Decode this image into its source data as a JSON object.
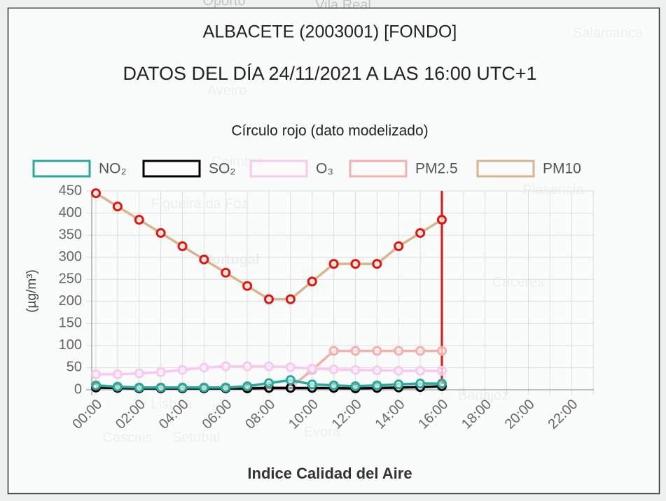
{
  "chart_data": {
    "type": "line",
    "title": "ALBACETE (2003001) [FONDO]",
    "subtitle": "DATOS DEL DÍA 24/11/2021 A LAS 16:00 UTC+1",
    "annotation": "Círculo rojo (dato modelizado)",
    "y_label": "(µg/m³)",
    "x_label": "Indice Calidad del Aire",
    "map_labels": [
      "Oporto",
      "Vila Real",
      "Salamanca",
      "Aveiro",
      "Coimbra",
      "Figueira da Foz",
      "Plasencia",
      "Portugal",
      "Cáceres",
      "Lisboa",
      "Cascais",
      "Setubal",
      "Evora",
      "Badajoz"
    ],
    "categories": [
      "00:00",
      null,
      "02:00",
      null,
      "04:00",
      null,
      "06:00",
      null,
      "08:00",
      null,
      "10:00",
      null,
      "12:00",
      null,
      "14:00",
      null,
      "16:00",
      null,
      "18:00",
      null,
      "20:00",
      null,
      "22:00",
      null
    ],
    "ylim": [
      0,
      450
    ],
    "yticks": [
      0,
      50,
      100,
      150,
      200,
      250,
      300,
      350,
      400,
      450
    ],
    "grid": true,
    "series": [
      {
        "name": "PM10",
        "color": "#d8b48e",
        "point_color": "#e3140f",
        "values": [
          445,
          415,
          385,
          355,
          325,
          295,
          265,
          235,
          205,
          205,
          245,
          285,
          285,
          285,
          325,
          355,
          385,
          null,
          null,
          null,
          null,
          null,
          null,
          null
        ]
      },
      {
        "name": "PM2.5",
        "color": "#f4b0ad",
        "point_color": "#f4b0ad",
        "values": [
          5,
          5,
          5,
          5,
          5,
          5,
          5,
          5,
          5,
          5,
          45,
          88,
          88,
          88,
          88,
          88,
          88,
          null,
          null,
          null,
          null,
          null,
          null,
          null
        ]
      },
      {
        "name": "O₃",
        "color": "#f9c8ef",
        "point_color": "#f9c8ef",
        "values": [
          35,
          35,
          37,
          40,
          45,
          50,
          53,
          53,
          53,
          51,
          48,
          46,
          45,
          44,
          43,
          43,
          43,
          null,
          null,
          null,
          null,
          null,
          null,
          null
        ]
      },
      {
        "name": "SO₂",
        "color": "#000000",
        "point_color": "#000000",
        "values": [
          5,
          4,
          3,
          3,
          3,
          3,
          3,
          3,
          4,
          4,
          4,
          4,
          3,
          4,
          5,
          6,
          8,
          null,
          null,
          null,
          null,
          null,
          null,
          null
        ]
      },
      {
        "name": "NO₂",
        "color": "#27aa9c",
        "point_color": "#27aa9c",
        "values": [
          10,
          7,
          5,
          5,
          5,
          5,
          5,
          8,
          15,
          22,
          12,
          10,
          8,
          10,
          12,
          14,
          14,
          null,
          null,
          null,
          null,
          null,
          null,
          null
        ]
      }
    ]
  }
}
